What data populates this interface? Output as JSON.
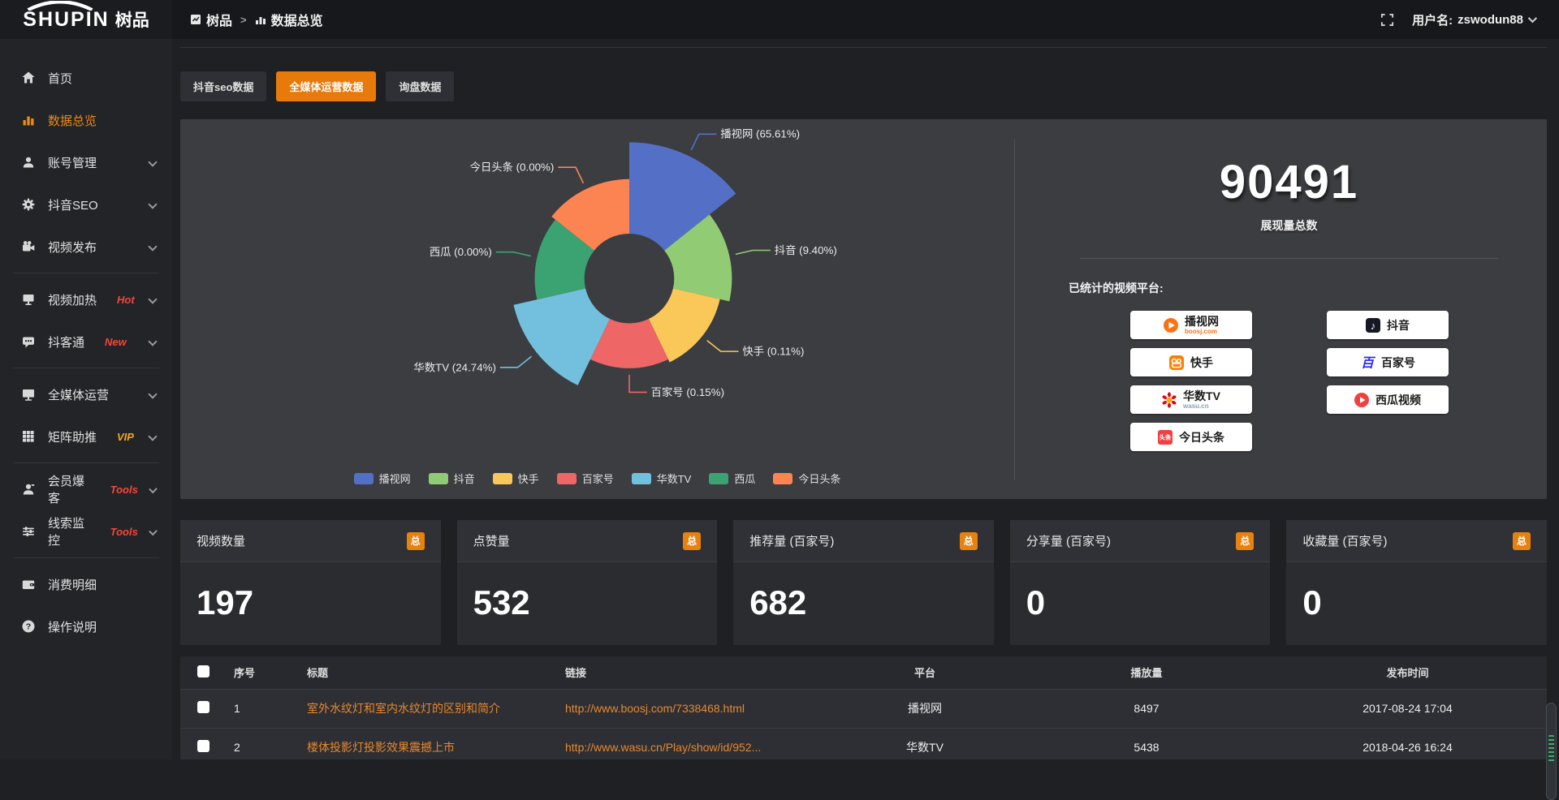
{
  "header": {
    "logo_text": "SHUPIN",
    "logo_cn": "树品",
    "breadcrumb": {
      "root": "树品",
      "separator": ">",
      "current": "数据总览"
    },
    "username_label": "用户名:",
    "username": "zswodun88"
  },
  "sidebar": {
    "items": [
      {
        "label": "首页",
        "icon": "home-icon"
      },
      {
        "label": "数据总览",
        "icon": "chart-icon",
        "active": true
      },
      {
        "label": "账号管理",
        "icon": "user-icon",
        "expandable": true
      },
      {
        "label": "抖音SEO",
        "icon": "gear-icon",
        "expandable": true
      },
      {
        "label": "视频发布",
        "icon": "video-icon",
        "expandable": true
      },
      {
        "divider": true
      },
      {
        "label": "视频加热",
        "icon": "heat-icon",
        "tag": "Hot",
        "tag_color": "#F5453D",
        "expandable": true
      },
      {
        "label": "抖客通",
        "icon": "chat-icon",
        "tag": "New",
        "tag_color": "#F5453D",
        "expandable": true
      },
      {
        "divider": true
      },
      {
        "label": "全媒体运营",
        "icon": "monitor-icon",
        "expandable": true
      },
      {
        "label": "矩阵助推",
        "icon": "grid-icon",
        "tag": "VIP",
        "tag_color": "#F5A623",
        "expandable": true
      },
      {
        "divider": true
      },
      {
        "label": "会员爆客",
        "icon": "member-icon",
        "tag": "Tools",
        "tag_color": "#F5453D",
        "expandable": true
      },
      {
        "label": "线索监控",
        "icon": "sliders-icon",
        "tag": "Tools",
        "tag_color": "#F5453D",
        "expandable": true
      },
      {
        "divider": true
      },
      {
        "label": "消费明细",
        "icon": "wallet-icon"
      },
      {
        "label": "操作说明",
        "icon": "question-icon"
      }
    ]
  },
  "tabs": [
    {
      "label": "抖音seo数据",
      "active": false
    },
    {
      "label": "全媒体运营数据",
      "active": true
    },
    {
      "label": "询盘数据",
      "active": false
    }
  ],
  "chart_data": {
    "type": "pie",
    "subtype": "nightingale-rose",
    "label_format": "{name} ({percent}%)",
    "legend_position": "bottom",
    "inner_radius_px": 56,
    "series": [
      {
        "name": "播视网",
        "percent": 65.61,
        "color": "#5470C6",
        "radius_px": 170
      },
      {
        "name": "抖音",
        "percent": 9.4,
        "color": "#91CC75",
        "radius_px": 128
      },
      {
        "name": "快手",
        "percent": 0.11,
        "color": "#FAC858",
        "radius_px": 116
      },
      {
        "name": "百家号",
        "percent": 0.15,
        "color": "#EE6666",
        "radius_px": 112
      },
      {
        "name": "华数TV",
        "percent": 24.74,
        "color": "#73C0DE",
        "radius_px": 148
      },
      {
        "name": "西瓜",
        "percent": 0.0,
        "color": "#3BA272",
        "radius_px": 118
      },
      {
        "name": "今日头条",
        "percent": 0.0,
        "color": "#FC8452",
        "radius_px": 124
      }
    ],
    "legend": [
      "播视网",
      "抖音",
      "快手",
      "百家号",
      "华数TV",
      "西瓜",
      "今日头条"
    ]
  },
  "summary": {
    "total_value": "90491",
    "total_label": "展现量总数",
    "platforms_label": "已统计的视频平台:",
    "platforms": [
      {
        "name": "播视网",
        "sub": "boosj.com",
        "sub_color": "#F97316",
        "icon": "boosj-logo"
      },
      {
        "name": "抖音",
        "icon": "douyin-logo"
      },
      {
        "name": "快手",
        "icon": "kuaishou-logo"
      },
      {
        "name": "百家号",
        "icon": "baijiahao-logo"
      },
      {
        "name": "华数TV",
        "sub": "wasu.cn",
        "sub_color": "#8aa0b8",
        "icon": "wasu-logo"
      },
      {
        "name": "西瓜视频",
        "icon": "xigua-logo"
      },
      {
        "name": "今日头条",
        "icon": "toutiao-logo"
      }
    ]
  },
  "stat_cards": [
    {
      "title": "视频数量",
      "badge": "总",
      "value": "197"
    },
    {
      "title": "点赞量",
      "badge": "总",
      "value": "532"
    },
    {
      "title": "推荐量 (百家号)",
      "badge": "总",
      "value": "682"
    },
    {
      "title": "分享量 (百家号)",
      "badge": "总",
      "value": "0"
    },
    {
      "title": "收藏量 (百家号)",
      "badge": "总",
      "value": "0"
    }
  ],
  "table": {
    "columns": [
      "序号",
      "标题",
      "链接",
      "平台",
      "播放量",
      "发布时间"
    ],
    "rows": [
      {
        "seq": "1",
        "title": "室外水纹灯和室内水纹灯的区别和简介",
        "link": "http://www.boosj.com/7338468.html",
        "platform": "播视网",
        "plays": "8497",
        "time": "2017-08-24 17:04"
      },
      {
        "seq": "2",
        "title": "楼体投影灯投影效果震撼上市",
        "link": "http://www.wasu.cn/Play/show/id/952...",
        "platform": "华数TV",
        "plays": "5438",
        "time": "2018-04-26 16:24"
      },
      {
        "seq": "",
        "title": "",
        "link": "",
        "platform": "",
        "plays": "",
        "time": ""
      }
    ]
  },
  "colors": {
    "accent_orange": "#E8790B",
    "link_orange": "#E6882E",
    "badge_orange": "#E8820F"
  }
}
